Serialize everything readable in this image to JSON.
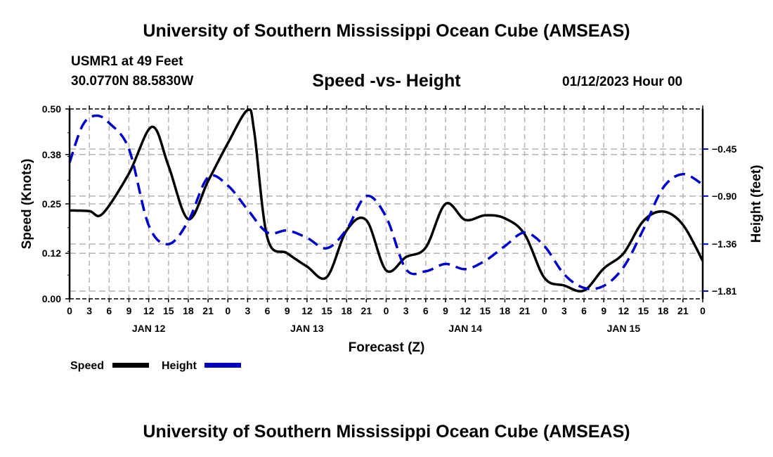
{
  "header": {
    "main_title": "University of Southern Mississippi Ocean Cube (AMSEAS)",
    "station_name": "USMR1 at 49 Feet",
    "station_coords": "30.0770N  88.5830W",
    "chart_title": "Speed -vs- Height",
    "run_time": "01/12/2023 Hour 00"
  },
  "footer": {
    "bottom_title": "University of Southern Mississippi Ocean Cube (AMSEAS)"
  },
  "colors": {
    "speed": "#000000",
    "height": "#0000cc",
    "grid": "#b4b4b4"
  },
  "chart_data": {
    "type": "line",
    "title": "Speed -vs- Height",
    "xlabel": "Forecast (Z)",
    "ylabel": "Speed (Knots)",
    "y2label": "Height (feet)",
    "x_hours_range": [
      0,
      96
    ],
    "x_tick_step_hours": 3,
    "x_tick_labels": [
      "0",
      "3",
      "6",
      "9",
      "12",
      "15",
      "18",
      "21",
      "0",
      "3",
      "6",
      "9",
      "12",
      "15",
      "18",
      "21",
      "0",
      "3",
      "6",
      "9",
      "12",
      "15",
      "18",
      "21",
      "0",
      "3",
      "6",
      "9",
      "12",
      "15",
      "18",
      "21",
      "0"
    ],
    "day_labels": [
      {
        "label": "JAN 12",
        "center_hour": 12
      },
      {
        "label": "JAN 13",
        "center_hour": 36
      },
      {
        "label": "JAN 14",
        "center_hour": 60
      },
      {
        "label": "JAN 15",
        "center_hour": 84
      }
    ],
    "ylim": [
      0.0,
      0.5
    ],
    "y_ticks": [
      0.0,
      0.12,
      0.25,
      0.38,
      0.5
    ],
    "y_tick_labels": [
      "0.00",
      "0.12",
      "0.25",
      "0.38",
      "0.50"
    ],
    "y2lim": [
      -1.884,
      -0.066
    ],
    "y2_ticks": [
      -0.45,
      -0.9,
      -1.36,
      -1.81
    ],
    "y2_tick_labels": [
      "−0.45",
      "−0.90",
      "−1.36",
      "−1.81"
    ],
    "grid": true,
    "legend": {
      "placement": "bottom-left",
      "entries": [
        {
          "name": "Speed",
          "style": "solid"
        },
        {
          "name": "Height",
          "style": "dashed"
        }
      ]
    },
    "series": [
      {
        "name": "Speed",
        "axis": "left",
        "x": [
          0,
          3,
          5,
          9,
          12.5,
          15,
          18,
          21,
          24,
          27,
          28,
          30,
          33,
          36,
          39,
          42,
          45,
          48,
          51,
          54,
          57,
          60,
          63,
          66,
          69,
          72,
          75,
          78,
          81,
          84,
          87,
          90,
          93,
          96
        ],
        "values": [
          0.233,
          0.231,
          0.224,
          0.33,
          0.453,
          0.35,
          0.21,
          0.31,
          0.41,
          0.497,
          0.44,
          0.16,
          0.12,
          0.085,
          0.057,
          0.18,
          0.207,
          0.075,
          0.11,
          0.135,
          0.25,
          0.208,
          0.22,
          0.212,
          0.17,
          0.055,
          0.035,
          0.022,
          0.08,
          0.12,
          0.205,
          0.23,
          0.195,
          0.1
        ]
      },
      {
        "name": "Height",
        "axis": "right",
        "x": [
          0,
          2,
          4,
          6,
          9,
          12,
          15,
          18,
          21,
          24,
          27,
          30,
          33,
          36,
          39,
          42,
          45,
          48,
          51,
          54,
          57,
          60,
          63,
          66,
          69,
          72,
          75,
          78,
          81,
          84,
          87,
          90,
          93,
          96
        ],
        "values": [
          -0.58,
          -0.22,
          -0.13,
          -0.2,
          -0.45,
          -1.18,
          -1.36,
          -1.14,
          -0.72,
          -0.8,
          -1.03,
          -1.25,
          -1.23,
          -1.3,
          -1.4,
          -1.22,
          -0.9,
          -1.1,
          -1.6,
          -1.62,
          -1.55,
          -1.6,
          -1.52,
          -1.38,
          -1.25,
          -1.38,
          -1.65,
          -1.78,
          -1.76,
          -1.58,
          -1.22,
          -0.82,
          -0.69,
          -0.79
        ]
      }
    ]
  }
}
